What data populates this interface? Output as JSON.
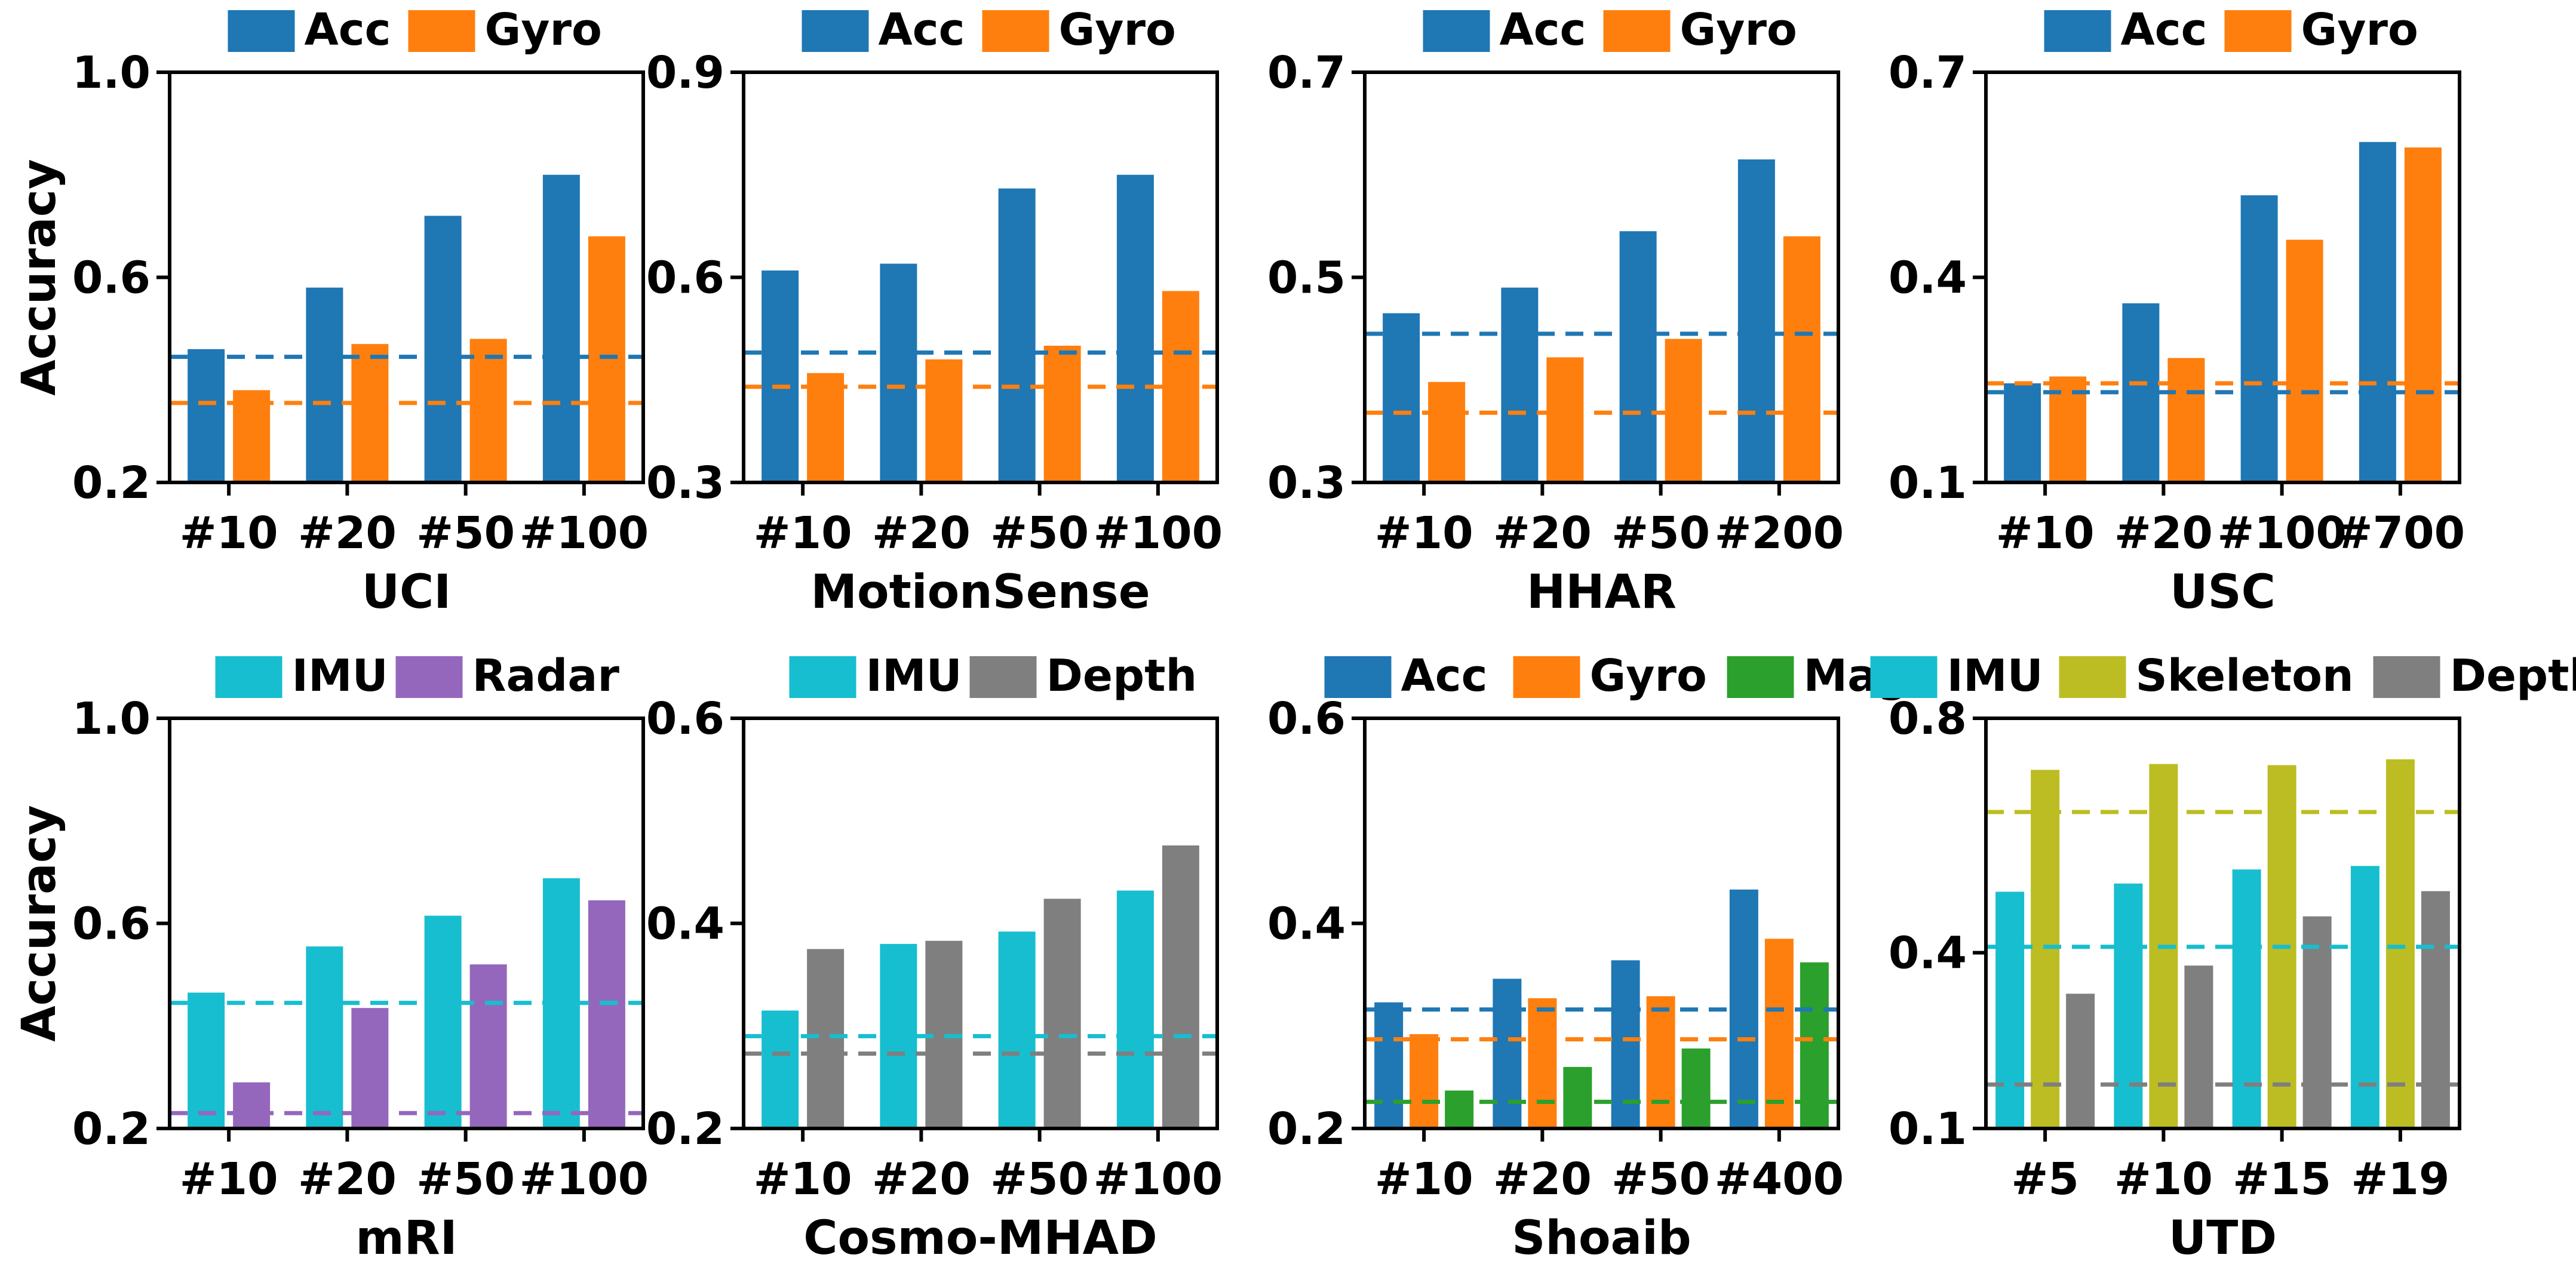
{
  "colors": {
    "Acc": "#1f77b4",
    "Gyro": "#ff7f0e",
    "Mag": "#2ca02c",
    "IMU": "#17becf",
    "Radar": "#9467bd",
    "Depth": "#7f7f7f",
    "Skeleton": "#bcbd22"
  },
  "chart_data": [
    {
      "type": "bar",
      "dataset": "UCI",
      "ylabel": "Accuracy",
      "ylim": [
        0.2,
        1.0
      ],
      "yticks": [
        "0.2",
        "0.6",
        "1.0"
      ],
      "categories": [
        "#10",
        "#20",
        "#50",
        "#100"
      ],
      "series": [
        {
          "name": "Acc",
          "values": [
            0.46,
            0.58,
            0.72,
            0.8
          ],
          "baseline": 0.445
        },
        {
          "name": "Gyro",
          "values": [
            0.38,
            0.47,
            0.48,
            0.68
          ],
          "baseline": 0.355
        }
      ]
    },
    {
      "type": "bar",
      "dataset": "MotionSense",
      "ylabel": "",
      "ylim": [
        0.3,
        0.9
      ],
      "yticks": [
        "0.3",
        "0.6",
        "0.9"
      ],
      "categories": [
        "#10",
        "#20",
        "#50",
        "#100"
      ],
      "series": [
        {
          "name": "Acc",
          "values": [
            0.61,
            0.62,
            0.73,
            0.75
          ],
          "baseline": 0.49
        },
        {
          "name": "Gyro",
          "values": [
            0.46,
            0.48,
            0.5,
            0.58
          ],
          "baseline": 0.44
        }
      ]
    },
    {
      "type": "bar",
      "dataset": "HHAR",
      "ylabel": "",
      "ylim": [
        0.3,
        0.7
      ],
      "yticks": [
        "0.3",
        "0.5",
        "0.7"
      ],
      "categories": [
        "#10",
        "#20",
        "#50",
        "#200"
      ],
      "series": [
        {
          "name": "Acc",
          "values": [
            0.465,
            0.49,
            0.545,
            0.615
          ],
          "baseline": 0.445
        },
        {
          "name": "Gyro",
          "values": [
            0.398,
            0.422,
            0.44,
            0.54
          ],
          "baseline": 0.368
        }
      ]
    },
    {
      "type": "bar",
      "dataset": "USC",
      "ylabel": "",
      "ylim": [
        0.1,
        0.7
      ],
      "yticks": [
        "0.1",
        "0.4",
        "0.7"
      ],
      "categories": [
        "#10",
        "#20",
        "#100",
        "#700"
      ],
      "series": [
        {
          "name": "Acc",
          "values": [
            0.245,
            0.362,
            0.52,
            0.598
          ],
          "baseline": 0.232
        },
        {
          "name": "Gyro",
          "values": [
            0.255,
            0.282,
            0.455,
            0.59
          ],
          "baseline": 0.245
        }
      ]
    },
    {
      "type": "bar",
      "dataset": "mRI",
      "ylabel": "Accuracy",
      "ylim": [
        0.2,
        1.0
      ],
      "yticks": [
        "0.2",
        "0.6",
        "1.0"
      ],
      "categories": [
        "#10",
        "#20",
        "#50",
        "#100"
      ],
      "series": [
        {
          "name": "IMU",
          "values": [
            0.465,
            0.555,
            0.615,
            0.688
          ],
          "baseline": 0.445
        },
        {
          "name": "Radar",
          "values": [
            0.29,
            0.435,
            0.52,
            0.645
          ],
          "baseline": 0.23
        }
      ]
    },
    {
      "type": "bar",
      "dataset": "Cosmo-MHAD",
      "ylabel": "",
      "ylim": [
        0.2,
        0.6
      ],
      "yticks": [
        "0.2",
        "0.4",
        "0.6"
      ],
      "categories": [
        "#10",
        "#20",
        "#50",
        "#100"
      ],
      "series": [
        {
          "name": "IMU",
          "values": [
            0.315,
            0.38,
            0.392,
            0.432
          ],
          "baseline": 0.29
        },
        {
          "name": "Depth",
          "values": [
            0.375,
            0.383,
            0.424,
            0.476
          ],
          "baseline": 0.273
        }
      ]
    },
    {
      "type": "bar",
      "dataset": "Shoaib",
      "ylabel": "",
      "ylim": [
        0.2,
        0.6
      ],
      "yticks": [
        "0.2",
        "0.4",
        "0.6"
      ],
      "categories": [
        "#10",
        "#20",
        "#50",
        "#400"
      ],
      "series": [
        {
          "name": "Acc",
          "values": [
            0.323,
            0.346,
            0.364,
            0.433
          ],
          "baseline": 0.316
        },
        {
          "name": "Gyro",
          "values": [
            0.292,
            0.327,
            0.329,
            0.385
          ],
          "baseline": 0.287
        },
        {
          "name": "Mag",
          "values": [
            0.237,
            0.26,
            0.278,
            0.362
          ],
          "baseline": 0.226
        }
      ]
    },
    {
      "type": "bar",
      "dataset": "UTD",
      "ylabel": "",
      "ylim": [
        0.1,
        0.8
      ],
      "yticks": [
        "0.1",
        "0.4",
        "0.8"
      ],
      "categories": [
        "#5",
        "#10",
        "#15",
        "#19"
      ],
      "series": [
        {
          "name": "IMU",
          "values": [
            0.504,
            0.518,
            0.542,
            0.548
          ],
          "baseline": 0.41
        },
        {
          "name": "Skeleton",
          "values": [
            0.712,
            0.722,
            0.72,
            0.73
          ],
          "baseline": 0.64
        },
        {
          "name": "Depth",
          "values": [
            0.33,
            0.378,
            0.462,
            0.505
          ],
          "baseline": 0.175
        }
      ]
    }
  ]
}
